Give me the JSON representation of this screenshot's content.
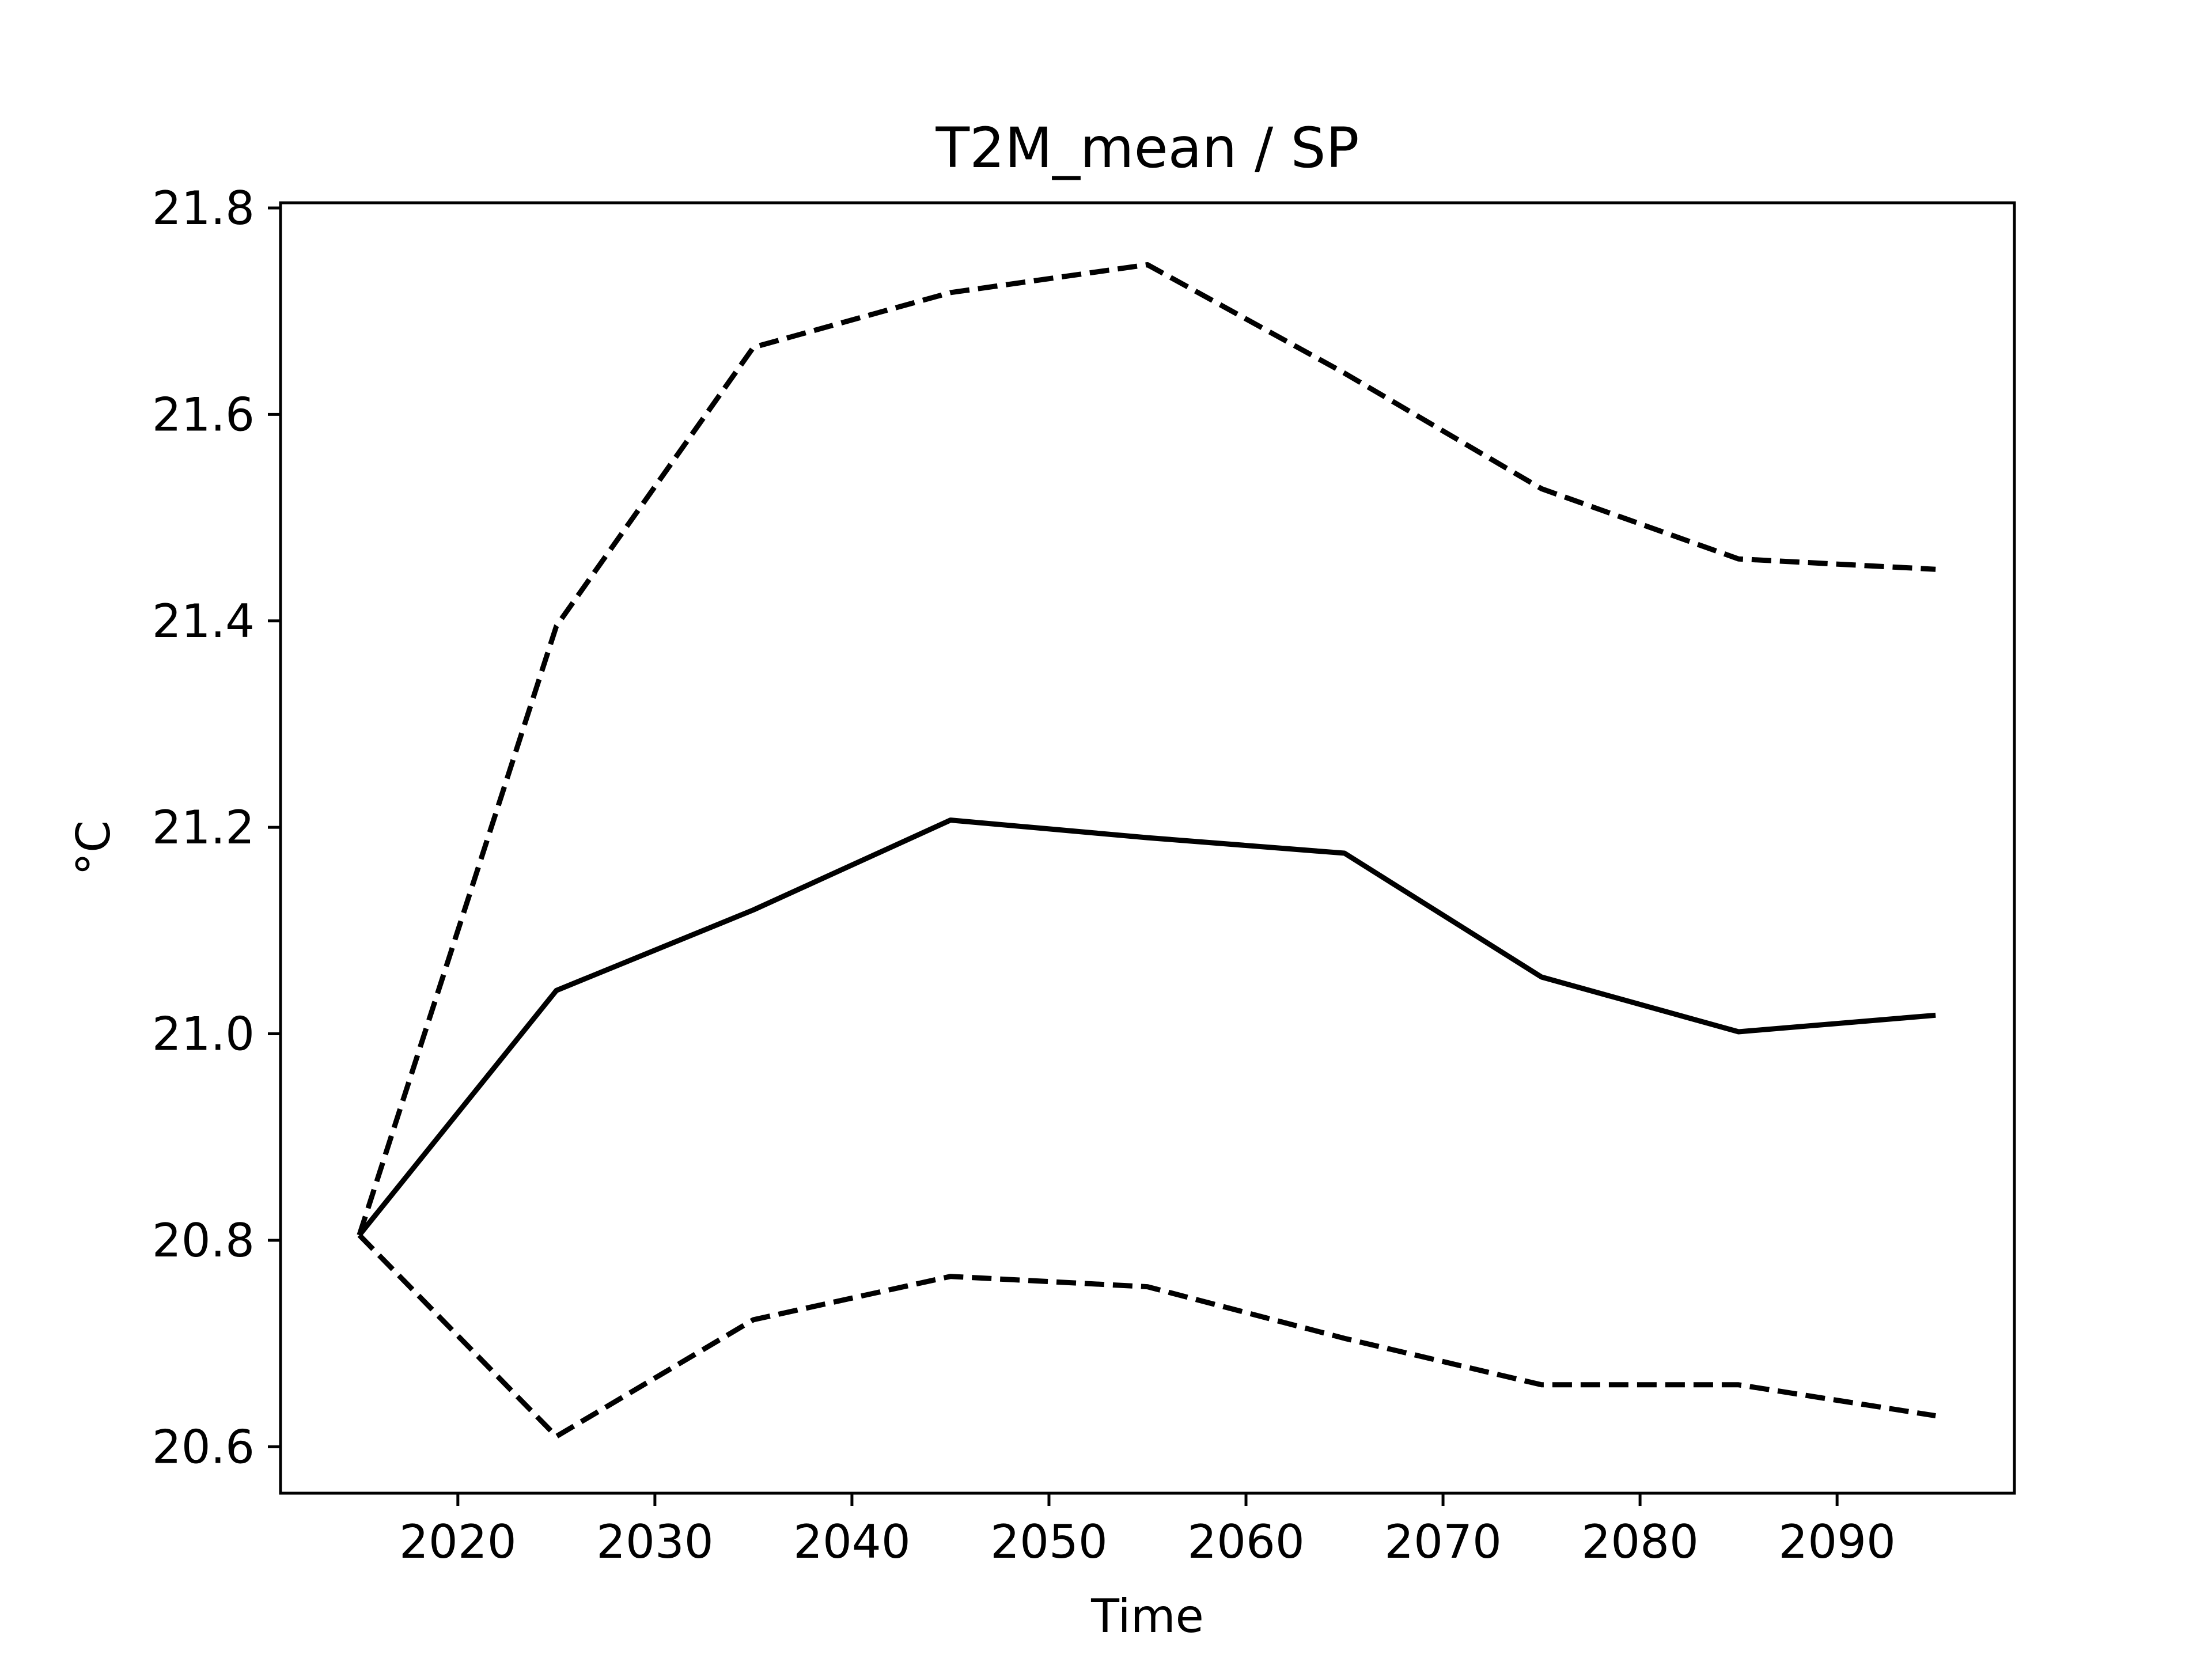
{
  "chart_data": {
    "type": "line",
    "title": "T2M_mean / SP",
    "xlabel": "Time",
    "ylabel": "°C",
    "xlim": [
      2011,
      2099
    ],
    "ylim": [
      20.555,
      21.805
    ],
    "xticks": [
      2020,
      2030,
      2040,
      2050,
      2060,
      2070,
      2080,
      2090
    ],
    "yticks": [
      20.6,
      20.8,
      21.0,
      21.2,
      21.4,
      21.6,
      21.8
    ],
    "ytick_labels": [
      "20.6",
      "20.8",
      "21.0",
      "21.2",
      "21.4",
      "21.6",
      "21.8"
    ],
    "x": [
      2015,
      2025,
      2035,
      2045,
      2055,
      2065,
      2075,
      2085,
      2095
    ],
    "series": [
      {
        "style": "dashed",
        "color": "#000000",
        "values": [
          20.805,
          21.395,
          21.665,
          21.718,
          21.745,
          21.64,
          21.528,
          21.46,
          21.45
        ]
      },
      {
        "style": "solid",
        "color": "#000000",
        "values": [
          20.805,
          21.042,
          21.12,
          21.207,
          21.19,
          21.175,
          21.055,
          21.002,
          21.018
        ]
      },
      {
        "style": "dashed",
        "color": "#000000",
        "values": [
          20.805,
          20.61,
          20.723,
          20.765,
          20.755,
          20.705,
          20.66,
          20.66,
          20.63
        ]
      }
    ],
    "grid": false,
    "legend": "none"
  }
}
